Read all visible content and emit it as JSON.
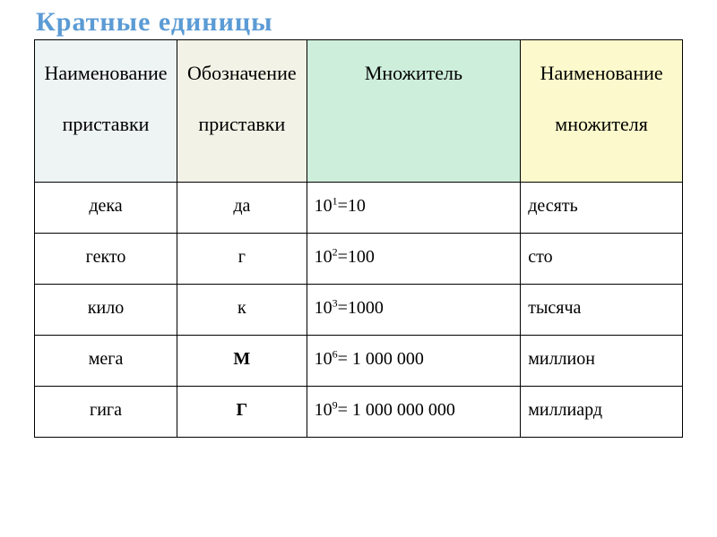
{
  "title": "Кратные единицы",
  "table": {
    "header_bg": [
      "#eef3f3",
      "#f2f2e6",
      "#cdeedb",
      "#fcfacc"
    ],
    "columns": [
      "Наименование приставки",
      "Обозначение приставки",
      "Множитель",
      "Наименование множителя"
    ],
    "rows": [
      {
        "prefix": "дека",
        "symbol": "да",
        "symbol_bold": false,
        "exp": "1",
        "value": "10",
        "sep": "=",
        "name": "десять"
      },
      {
        "prefix": "гекто",
        "symbol": "г",
        "symbol_bold": false,
        "exp": "2",
        "value": "100",
        "sep": "=",
        "name": "сто"
      },
      {
        "prefix": "кило",
        "symbol": "к",
        "symbol_bold": false,
        "exp": "3",
        "value": "1000",
        "sep": "=",
        "name": "тысяча"
      },
      {
        "prefix": "мега",
        "symbol": "М",
        "symbol_bold": true,
        "exp": "6",
        "value": "1 000 000",
        "sep": "= ",
        "name": "миллион"
      },
      {
        "prefix": "гига",
        "symbol": "Г",
        "symbol_bold": true,
        "exp": "9",
        "value": "1 000 000 000",
        "sep": "= ",
        "name": "миллиард"
      }
    ]
  }
}
